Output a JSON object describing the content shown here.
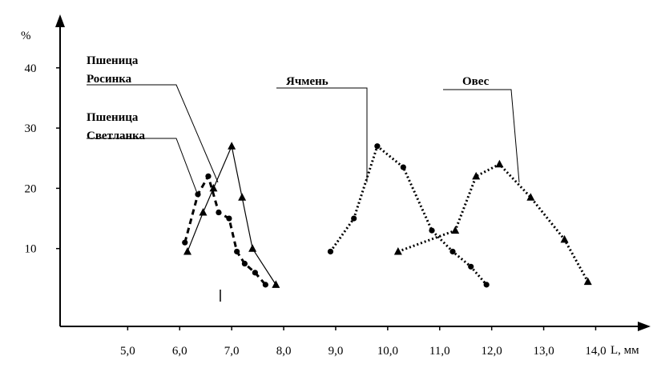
{
  "chart_data": {
    "type": "line",
    "title": "",
    "xlabel": "L, мм",
    "ylabel": "%",
    "xlim": [
      3.7,
      15.2
    ],
    "ylim": [
      0,
      50
    ],
    "x_ticks": [
      "5,0",
      "6,0",
      "7,0",
      "8,0",
      "9,0",
      "10,0",
      "11,0",
      "12,0",
      "13,0",
      "14,0"
    ],
    "x_tick_values": [
      5,
      6,
      7,
      8,
      9,
      10,
      11,
      12,
      13,
      14
    ],
    "y_ticks": [
      "10",
      "20",
      "30",
      "40"
    ],
    "y_tick_values": [
      10,
      20,
      30,
      40
    ],
    "series": [
      {
        "name": "Пшеница Светланка",
        "name_lines": [
          "Пшеница",
          "Светланка"
        ],
        "style": "dashed",
        "marker": "circle",
        "x": [
          6.1,
          6.35,
          6.55,
          6.75,
          6.95,
          7.1,
          7.25,
          7.45,
          7.65
        ],
        "y": [
          11,
          19,
          22,
          16,
          15,
          9.5,
          7.5,
          6,
          4
        ]
      },
      {
        "name": "Пшеница Росинка",
        "name_lines": [
          "Пшеница",
          "Росинка"
        ],
        "style": "solid",
        "marker": "triangle",
        "x": [
          6.15,
          6.45,
          6.65,
          7.0,
          7.2,
          7.4,
          7.85
        ],
        "y": [
          9.5,
          16,
          20,
          27,
          18.5,
          10,
          4
        ]
      },
      {
        "name": "Ячмень",
        "name_lines": [
          "Ячмень"
        ],
        "style": "dotted",
        "marker": "circle",
        "x": [
          8.9,
          9.35,
          9.8,
          10.3,
          10.85,
          11.25,
          11.6,
          11.9
        ],
        "y": [
          9.5,
          15,
          27,
          23.5,
          13,
          9.5,
          7,
          4
        ]
      },
      {
        "name": "Овес",
        "name_lines": [
          "Овес"
        ],
        "style": "dotted",
        "marker": "triangle",
        "x": [
          10.2,
          11.3,
          11.7,
          12.15,
          12.75,
          13.4,
          13.85
        ],
        "y": [
          9.5,
          13,
          22,
          24,
          18.5,
          11.5,
          4.5
        ]
      }
    ]
  }
}
